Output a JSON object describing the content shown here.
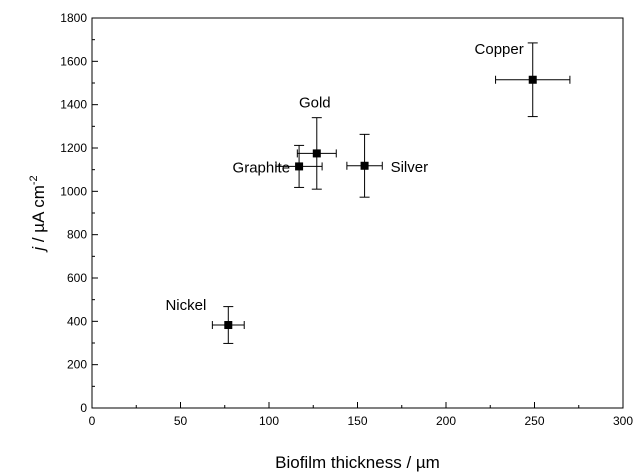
{
  "chart_data": {
    "type": "scatter",
    "title": "",
    "xlabel": "Biofilm thickness / µm",
    "ylabel": {
      "italic": "j",
      "rest": " / µA cm",
      "superscript": "-2"
    },
    "xlim": [
      0,
      300
    ],
    "ylim": [
      0,
      1800
    ],
    "xticks": [
      0,
      50,
      100,
      150,
      200,
      250,
      300
    ],
    "yticks": [
      0,
      200,
      400,
      600,
      800,
      1000,
      1200,
      1400,
      1600,
      1800
    ],
    "grid": false,
    "legend": "none",
    "marker_color": "#000000",
    "points": [
      {
        "label": "Nickel",
        "x": 77,
        "y": 383,
        "xerr": 9,
        "yerr": 85
      },
      {
        "label": "Graphite",
        "x": 117,
        "y": 1115,
        "xerr": 13,
        "yerr": 97
      },
      {
        "label": "Gold",
        "x": 127,
        "y": 1175,
        "xerr": 11,
        "yerr": 165
      },
      {
        "label": "Silver",
        "x": 154,
        "y": 1118,
        "xerr": 10,
        "yerr": 145
      },
      {
        "label": "Copper",
        "x": 249,
        "y": 1515,
        "xerr": 21,
        "yerr": 170
      }
    ]
  }
}
